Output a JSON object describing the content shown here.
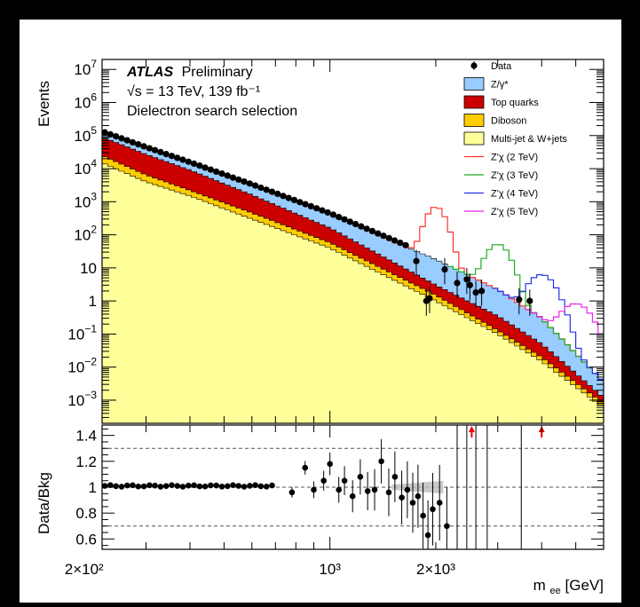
{
  "chart_data": {
    "type": "histogram",
    "title": "",
    "experiment": "ATLAS",
    "status": "Preliminary",
    "energy_lumi": "√s = 13 TeV, 139 fb⁻¹",
    "selection": "Dielectron search selection",
    "xlabel": "m_ee [GeV]",
    "xlabel_main": "m",
    "xlabel_sub": "ee",
    "xlabel_unit": " [GeV]",
    "ylabel_top": "Events",
    "ylabel_bottom": "Data/Bkg",
    "x_scale": "log",
    "y_scale_top": "log",
    "xlim": [
      225,
      6000
    ],
    "ylim_top": [
      0.0002,
      20000000
    ],
    "ylim_bottom": [
      0.52,
      1.48
    ],
    "x_tick_labels": [
      {
        "value": 200,
        "label": "2×10²"
      },
      {
        "value": 1000,
        "label": "10³"
      },
      {
        "value": 2000,
        "label": "2×10³"
      }
    ],
    "y_tick_labels_top": [
      {
        "value": 10000000,
        "base": "10",
        "exp": "7"
      },
      {
        "value": 1000000,
        "base": "10",
        "exp": "6"
      },
      {
        "value": 100000,
        "base": "10",
        "exp": "5"
      },
      {
        "value": 10000,
        "base": "10",
        "exp": "4"
      },
      {
        "value": 1000,
        "base": "10",
        "exp": "3"
      },
      {
        "value": 100,
        "base": "10",
        "exp": "2"
      },
      {
        "value": 10,
        "base": "10",
        "exp": ""
      },
      {
        "value": 1,
        "base": "1",
        "exp": ""
      },
      {
        "value": 0.1,
        "base": "10",
        "exp": "−1"
      },
      {
        "value": 0.01,
        "base": "10",
        "exp": "−2"
      },
      {
        "value": 0.001,
        "base": "10",
        "exp": "−3"
      }
    ],
    "y_tick_labels_bottom": [
      "1.4",
      "1.2",
      "1",
      "0.8",
      "0.6"
    ],
    "y_ticks_bottom": [
      1.4,
      1.2,
      1.0,
      0.8,
      0.6
    ],
    "dashed_lines_bottom": [
      1.3,
      1.0,
      0.7
    ],
    "legend_position": "top-right",
    "legend": [
      {
        "name": "Data",
        "kind": "marker",
        "color": "#000000"
      },
      {
        "name": "Z/γ*",
        "kind": "fill",
        "color": "#99ccff"
      },
      {
        "name": "Top quarks",
        "kind": "fill",
        "color": "#cc0000"
      },
      {
        "name": "Diboson",
        "kind": "fill",
        "color": "#ffcc00"
      },
      {
        "name": "Multi-jet & W+jets",
        "kind": "fill",
        "color": "#ffff99"
      },
      {
        "name": "Z'χ (2 TeV)",
        "kind": "line",
        "color": "#ff3333"
      },
      {
        "name": "Z'χ (3 TeV)",
        "kind": "line",
        "color": "#22aa22"
      },
      {
        "name": "Z'χ (4 TeV)",
        "kind": "line",
        "color": "#2233ee"
      },
      {
        "name": "Z'χ (5 TeV)",
        "kind": "line",
        "color": "#ee22ee"
      }
    ],
    "stack_series": [
      {
        "name": "Multi-jet & W+jets",
        "color": "#ffff99",
        "x": [
          225,
          300,
          400,
          600,
          1000,
          2000,
          3000,
          4000,
          6000
        ],
        "values": [
          15000,
          4000,
          1500,
          300,
          40,
          1,
          0.1,
          0.015,
          0.0006
        ]
      },
      {
        "name": "Diboson",
        "color": "#ffcc00",
        "x": [
          225,
          300,
          400,
          600,
          1000,
          2000,
          3000,
          4000,
          6000
        ],
        "values": [
          25000,
          6500,
          2200,
          460,
          58,
          1.5,
          0.13,
          0.02,
          0.0008
        ]
      },
      {
        "name": "Top quarks",
        "color": "#cc0000",
        "x": [
          225,
          300,
          400,
          600,
          1000,
          2000,
          3000,
          4000,
          6000
        ],
        "values": [
          90000,
          27000,
          9000,
          1600,
          160,
          3,
          0.35,
          0.05,
          0.0012
        ]
      },
      {
        "name": "Z/γ*",
        "color": "#99ccff",
        "x": [
          225,
          300,
          400,
          600,
          1000,
          2000,
          3000,
          4000,
          6000
        ],
        "values": [
          120000,
          40000,
          14000,
          3000,
          400,
          18,
          2.2,
          0.3,
          0.0035
        ]
      }
    ],
    "signal_series": [
      {
        "name": "Z'χ (2 TeV)",
        "color": "#ff3333",
        "mass": 2000,
        "peak": 680,
        "width": 0.05
      },
      {
        "name": "Z'χ (3 TeV)",
        "color": "#22aa22",
        "mass": 3000,
        "peak": 50,
        "width": 0.06
      },
      {
        "name": "Z'χ (4 TeV)",
        "color": "#2233ee",
        "mass": 4000,
        "peak": 6,
        "width": 0.07
      },
      {
        "name": "Z'χ (5 TeV)",
        "color": "#ee22ee",
        "mass": 5000,
        "peak": 0.8,
        "width": 0.08
      }
    ],
    "data_points": [
      {
        "x": 1760,
        "y": 16
      },
      {
        "x": 1880,
        "y": 1.0
      },
      {
        "x": 1920,
        "y": 1.2
      },
      {
        "x": 2120,
        "y": 9
      },
      {
        "x": 2300,
        "y": 3.5
      },
      {
        "x": 2450,
        "y": 4.5
      },
      {
        "x": 2500,
        "y": 3
      },
      {
        "x": 2600,
        "y": 1.8
      },
      {
        "x": 2700,
        "y": 2
      },
      {
        "x": 3450,
        "y": 1.1
      },
      {
        "x": 3700,
        "y": 1
      }
    ],
    "ratio_points": [
      {
        "x": 780,
        "y": 0.96
      },
      {
        "x": 850,
        "y": 1.15
      },
      {
        "x": 900,
        "y": 0.98
      },
      {
        "x": 960,
        "y": 1.05
      },
      {
        "x": 1000,
        "y": 1.18
      },
      {
        "x": 1060,
        "y": 0.98
      },
      {
        "x": 1100,
        "y": 1.05
      },
      {
        "x": 1160,
        "y": 0.93
      },
      {
        "x": 1220,
        "y": 1.08
      },
      {
        "x": 1280,
        "y": 0.97
      },
      {
        "x": 1340,
        "y": 0.98
      },
      {
        "x": 1400,
        "y": 1.2
      },
      {
        "x": 1470,
        "y": 0.96
      },
      {
        "x": 1530,
        "y": 1.08
      },
      {
        "x": 1600,
        "y": 0.92
      },
      {
        "x": 1660,
        "y": 0.98
      },
      {
        "x": 1720,
        "y": 0.88
      },
      {
        "x": 1780,
        "y": 0.93
      },
      {
        "x": 1840,
        "y": 0.78
      },
      {
        "x": 1900,
        "y": 0.63
      },
      {
        "x": 1960,
        "y": 0.83
      },
      {
        "x": 2050,
        "y": 0.88
      },
      {
        "x": 2150,
        "y": 0.7
      }
    ],
    "ratio_points_flat_range": [
      225,
      700
    ],
    "ratio_points_flat_value": 1.01,
    "ratio_arrows": [
      2530,
      4000
    ]
  }
}
